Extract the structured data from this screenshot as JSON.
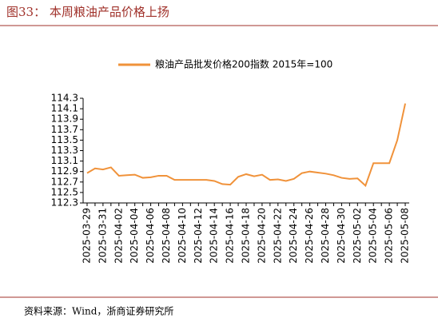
{
  "title": "图33：  本周粮油产品价格上扬",
  "source": "资料来源：Wind，浙商证券研究所",
  "chart_data": {
    "type": "line",
    "categories": [
      "2025-03-29",
      null,
      "2025-03-31",
      null,
      "2025-04-02",
      null,
      "2025-04-04",
      null,
      "2025-04-06",
      null,
      "2025-04-08",
      null,
      "2025-04-10",
      null,
      "2025-04-12",
      null,
      "2025-04-14",
      null,
      "2025-04-16",
      null,
      "2025-04-18",
      null,
      "2025-04-20",
      null,
      "2025-04-22",
      null,
      "2025-04-24",
      null,
      "2025-04-26",
      null,
      "2025-04-28",
      null,
      "2025-04-30",
      null,
      "2025-05-02",
      null,
      "2025-05-04",
      null,
      "2025-05-06",
      null,
      "2025-05-08"
    ],
    "series": [
      {
        "name": "粮油产品批发价格200指数 2015年=100",
        "color": "#f0923a",
        "values": [
          112.87,
          112.96,
          112.94,
          112.98,
          112.82,
          112.83,
          112.84,
          112.78,
          112.79,
          112.82,
          112.82,
          112.74,
          112.74,
          112.74,
          112.74,
          112.74,
          112.72,
          112.66,
          112.65,
          112.8,
          112.85,
          112.81,
          112.84,
          112.74,
          112.75,
          112.72,
          112.76,
          112.87,
          112.9,
          112.88,
          112.86,
          112.83,
          112.78,
          112.76,
          112.77,
          112.63,
          113.06,
          113.06,
          113.06,
          113.5,
          114.2
        ]
      }
    ],
    "ylim": [
      112.3,
      114.3
    ],
    "yticks": [
      112.3,
      112.5,
      112.7,
      112.9,
      113.1,
      113.3,
      113.5,
      113.7,
      113.9,
      114.1,
      114.3
    ],
    "legend": "top"
  }
}
